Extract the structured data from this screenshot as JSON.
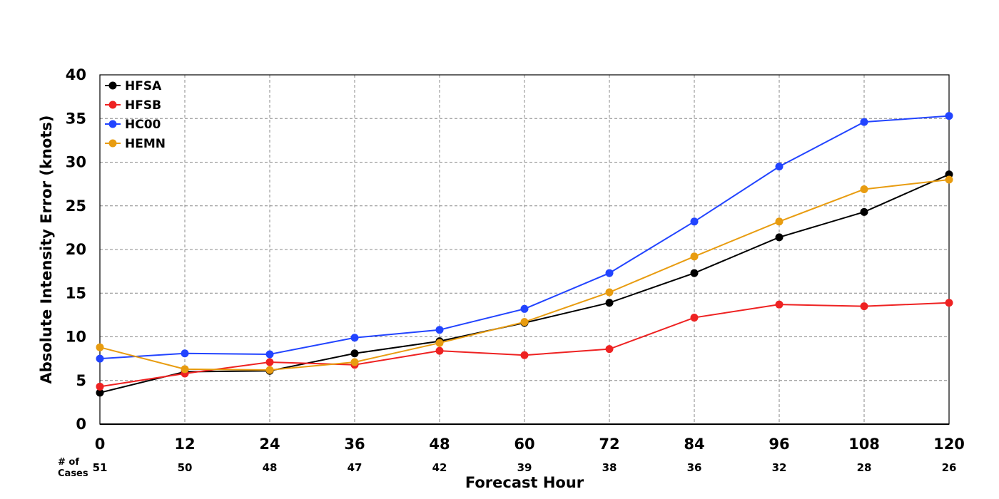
{
  "chart_data": {
    "type": "line",
    "title": "",
    "xlabel": "Forecast Hour",
    "ylabel": "Absolute Intensity Error (knots)",
    "x": [
      0,
      12,
      24,
      36,
      48,
      60,
      72,
      84,
      96,
      108,
      120
    ],
    "xlim": [
      0,
      120
    ],
    "ylim": [
      0,
      40
    ],
    "xticks": [
      "0",
      "12",
      "24",
      "36",
      "48",
      "60",
      "72",
      "84",
      "96",
      "108",
      "120"
    ],
    "yticks": [
      "0",
      "5",
      "10",
      "15",
      "20",
      "25",
      "30",
      "35",
      "40"
    ],
    "grid": true,
    "legend_position": "top-left",
    "cases_label_line1": "# of",
    "cases_label_line2": "Cases",
    "cases": [
      "51",
      "50",
      "48",
      "47",
      "42",
      "39",
      "38",
      "36",
      "32",
      "28",
      "26"
    ],
    "series": [
      {
        "name": "HFSA",
        "color": "#000000",
        "values": [
          3.6,
          6.0,
          6.1,
          8.1,
          9.5,
          11.6,
          13.9,
          17.3,
          21.4,
          24.3,
          28.6
        ]
      },
      {
        "name": "HFSB",
        "color": "#ee2222",
        "values": [
          4.3,
          5.8,
          7.1,
          6.8,
          8.4,
          7.9,
          8.6,
          12.2,
          13.7,
          13.5,
          13.9
        ]
      },
      {
        "name": "HC00",
        "color": "#2244ff",
        "values": [
          7.5,
          8.1,
          8.0,
          9.9,
          10.8,
          13.2,
          17.3,
          23.2,
          29.5,
          34.6,
          35.3
        ]
      },
      {
        "name": "HEMN",
        "color": "#e89c10",
        "values": [
          8.8,
          6.3,
          6.2,
          7.1,
          9.3,
          11.7,
          15.1,
          19.2,
          23.2,
          26.9,
          28.0
        ]
      }
    ]
  }
}
